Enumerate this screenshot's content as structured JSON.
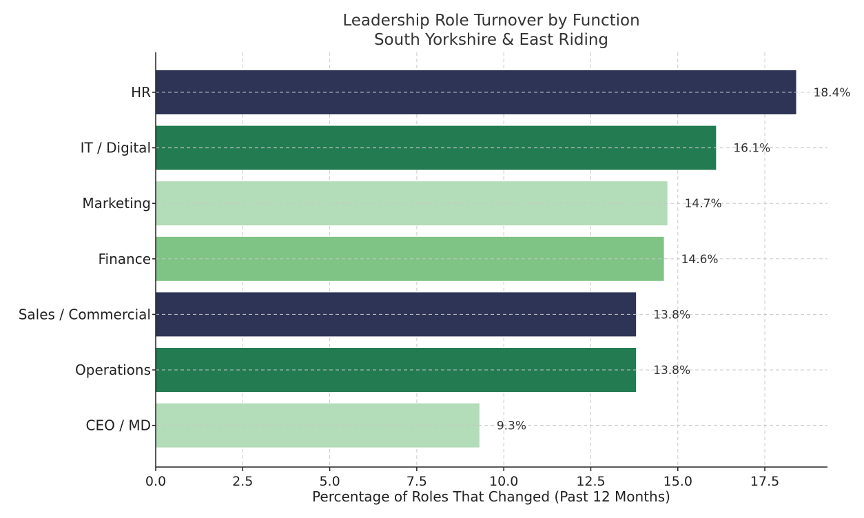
{
  "chart_data": {
    "type": "bar",
    "orientation": "horizontal",
    "title": "Leadership Role Turnover by Function",
    "subtitle": "South Yorkshire & East Riding",
    "xlabel": "Percentage of Roles That Changed (Past 12 Months)",
    "ylabel": "",
    "xlim": [
      0,
      19.3
    ],
    "xticks": [
      0.0,
      2.5,
      5.0,
      7.5,
      10.0,
      12.5,
      15.0,
      17.5
    ],
    "xtick_labels": [
      "0.0",
      "2.5",
      "5.0",
      "7.5",
      "10.0",
      "12.5",
      "15.0",
      "17.5"
    ],
    "grid": true,
    "categories": [
      "HR",
      "IT / Digital",
      "Marketing",
      "Finance",
      "Sales / Commercial",
      "Operations",
      "CEO / MD"
    ],
    "values": [
      18.4,
      16.1,
      14.7,
      14.6,
      13.8,
      13.8,
      9.3
    ],
    "value_labels": [
      "18.4%",
      "16.1%",
      "14.7%",
      "14.6%",
      "13.8%",
      "13.8%",
      "9.3%"
    ],
    "colors": [
      "#2e3456",
      "#237b52",
      "#b3dcb8",
      "#7fc385",
      "#2e3456",
      "#237b52",
      "#b3dcb8"
    ]
  }
}
